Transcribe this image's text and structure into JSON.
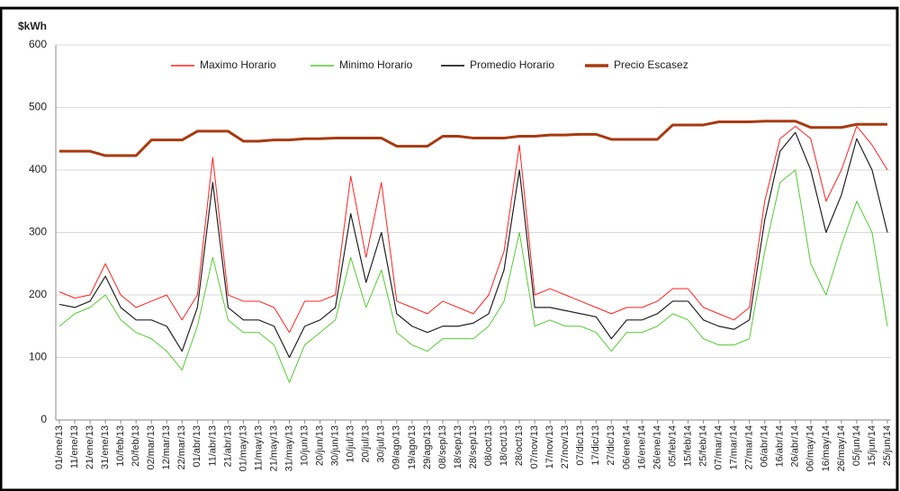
{
  "chart_data": {
    "type": "line",
    "y_label": "$kWh",
    "categories": [
      "01/ene/13",
      "11/ene/13",
      "21/ene/13",
      "31/ene/13",
      "10/feb/13",
      "20/feb/13",
      "02/mar/13",
      "12/mar/13",
      "22/mar/13",
      "01/abr/13",
      "11/abr/13",
      "21/abr/13",
      "01/may/13",
      "11/may/13",
      "21/may/13",
      "31/may/13",
      "10/jun/13",
      "20/jun/13",
      "30/jun/13",
      "10/jul/13",
      "20/jul/13",
      "30/jul/13",
      "09/ago/13",
      "19/ago/13",
      "29/ago/13",
      "08/sep/13",
      "18/sep/13",
      "28/sep/13",
      "08/oct/13",
      "18/oct/13",
      "28/oct/13",
      "07/nov/13",
      "17/nov/13",
      "27/nov/13",
      "07/dic/13",
      "17/dic/13",
      "27/dic/13",
      "06/ene/14",
      "16/ene/14",
      "26/ene/14",
      "05/feb/14",
      "15/feb/14",
      "25/feb/14",
      "07/mar/14",
      "17/mar/14",
      "27/mar/14",
      "06/abr/14",
      "16/abr/14",
      "26/abr/14",
      "06/may/14",
      "16/may/14",
      "26/may/14",
      "05/jun/14",
      "15/jun/14",
      "25/jun/14"
    ],
    "series": [
      {
        "name": "Maximo Horario",
        "color": "#ff2020",
        "width": 1,
        "values": [
          205,
          195,
          200,
          250,
          200,
          180,
          190,
          200,
          160,
          200,
          420,
          200,
          190,
          190,
          180,
          140,
          190,
          190,
          200,
          390,
          260,
          380,
          190,
          180,
          170,
          190,
          180,
          170,
          200,
          270,
          440,
          200,
          210,
          200,
          190,
          180,
          170,
          180,
          180,
          190,
          210,
          210,
          180,
          170,
          160,
          180,
          350,
          450,
          470,
          450,
          350,
          400,
          470,
          440,
          400
        ]
      },
      {
        "name": "Minimo Horario",
        "color": "#55cc33",
        "width": 1,
        "values": [
          150,
          170,
          180,
          200,
          160,
          140,
          130,
          110,
          80,
          150,
          260,
          160,
          140,
          140,
          120,
          60,
          120,
          140,
          160,
          260,
          180,
          240,
          140,
          120,
          110,
          130,
          130,
          130,
          150,
          190,
          300,
          150,
          160,
          150,
          150,
          140,
          110,
          140,
          140,
          150,
          170,
          160,
          130,
          120,
          120,
          130,
          270,
          380,
          400,
          250,
          200,
          280,
          350,
          300,
          150
        ]
      },
      {
        "name": "Promedio Horario",
        "color": "#222222",
        "width": 1.2,
        "values": [
          185,
          180,
          190,
          230,
          180,
          160,
          160,
          150,
          110,
          180,
          380,
          180,
          160,
          160,
          150,
          100,
          150,
          160,
          180,
          330,
          220,
          300,
          170,
          150,
          140,
          150,
          150,
          155,
          170,
          240,
          400,
          180,
          180,
          175,
          170,
          165,
          130,
          160,
          160,
          170,
          190,
          190,
          160,
          150,
          145,
          160,
          320,
          430,
          460,
          400,
          300,
          360,
          450,
          400,
          300
        ]
      },
      {
        "name": "Precio Escasez",
        "color": "#a83a10",
        "width": 3,
        "values": [
          430,
          430,
          430,
          423,
          423,
          423,
          448,
          448,
          448,
          462,
          462,
          462,
          446,
          446,
          448,
          448,
          450,
          450,
          451,
          451,
          451,
          451,
          438,
          438,
          438,
          454,
          454,
          451,
          451,
          451,
          454,
          454,
          456,
          456,
          457,
          457,
          449,
          449,
          449,
          449,
          472,
          472,
          472,
          477,
          477,
          477,
          478,
          478,
          478,
          468,
          468,
          468,
          473,
          473,
          473
        ]
      }
    ],
    "ylim": [
      0,
      600
    ],
    "yticks": [
      0,
      100,
      200,
      300,
      400,
      500,
      600
    ],
    "grid": true,
    "legend": "top"
  }
}
